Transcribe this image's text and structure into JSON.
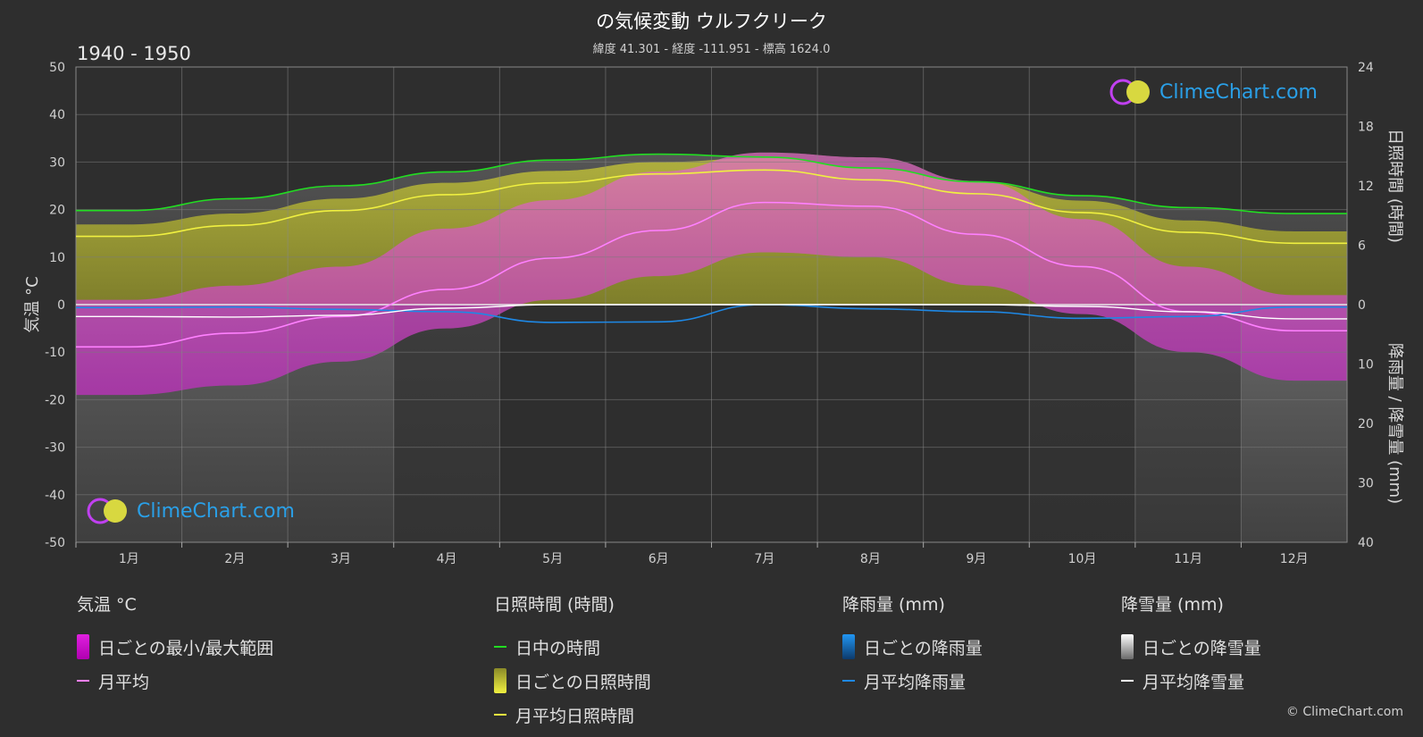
{
  "header": {
    "title": "の気候変動 ウルフクリーク",
    "subtitle": "緯度 41.301 - 経度 -111.951 - 標高 1624.0",
    "period": "1940 - 1950"
  },
  "logo": {
    "text": "ClimeChart.com"
  },
  "copyright": "© ClimeChart.com",
  "legend": {
    "temp": {
      "heading": "気温 °C",
      "range": "日ごとの最小/最大範囲",
      "avg": "月平均"
    },
    "sun": {
      "heading": "日照時間 (時間)",
      "daylight": "日中の時間",
      "daily": "日ごとの日照時間",
      "avg": "月平均日照時間"
    },
    "rain": {
      "heading": "降雨量 (mm)",
      "daily": "日ごとの降雨量",
      "avg": "月平均降雨量"
    },
    "snow": {
      "heading": "降雪量 (mm)",
      "daily": "日ごとの降雪量",
      "avg": "月平均降雪量"
    }
  },
  "colors": {
    "background": "#2e2e2e",
    "temp_range": "#e040e0",
    "temp_avg": "#ff80ff",
    "daylight": "#22dd22",
    "sunshine_band": "#b0b030",
    "sunshine_avg": "#f0f040",
    "rain": "#1e88e5",
    "snow": "#ffffff"
  },
  "chart_data": {
    "type": "line",
    "categories": [
      "1月",
      "2月",
      "3月",
      "4月",
      "5月",
      "6月",
      "7月",
      "8月",
      "9月",
      "10月",
      "11月",
      "12月"
    ],
    "axes": {
      "left": {
        "label": "気温 °C",
        "ticks": [
          "50",
          "40",
          "30",
          "20",
          "10",
          "0",
          "-10",
          "-20",
          "-30",
          "-40",
          "-50"
        ],
        "range": [
          -50,
          50
        ]
      },
      "right_top": {
        "label": "日照時間 (時間)",
        "ticks": [
          "24",
          "18",
          "12",
          "6",
          "0"
        ],
        "range": [
          0,
          24
        ]
      },
      "right_bottom": {
        "label": "降雨量 / 降雪量 (mm)",
        "ticks": [
          "0",
          "10",
          "20",
          "30",
          "40"
        ],
        "range": [
          0,
          40
        ]
      }
    },
    "grid": true,
    "series": [
      {
        "name": "日中の時間",
        "unit": "hours",
        "values": [
          9.5,
          10.7,
          12.0,
          13.4,
          14.6,
          15.2,
          14.9,
          13.8,
          12.4,
          11.0,
          9.8,
          9.2
        ]
      },
      {
        "name": "月平均日照時間",
        "unit": "hours",
        "values": [
          6.9,
          8.0,
          9.5,
          11.1,
          12.3,
          13.2,
          13.6,
          12.6,
          11.2,
          9.3,
          7.3,
          6.2
        ]
      },
      {
        "name": "月平均",
        "unit": "°C",
        "values": [
          -8.9,
          -6.0,
          -2.5,
          3.2,
          9.8,
          15.6,
          21.5,
          20.7,
          14.8,
          8.0,
          -1.5,
          -5.5
        ]
      },
      {
        "name": "月平均降雨量",
        "unit": "mm",
        "values": [
          0.5,
          0.4,
          0.8,
          1.2,
          3.0,
          2.9,
          0.0,
          0.7,
          1.2,
          2.3,
          2.0,
          0.4
        ]
      },
      {
        "name": "月平均降雪量",
        "unit": "mm",
        "values": [
          2.0,
          2.1,
          1.8,
          0.6,
          0.0,
          0.0,
          0.0,
          0.0,
          0.0,
          0.3,
          1.2,
          2.4
        ]
      }
    ],
    "daily_temperature_range": {
      "min": [
        -19,
        -17,
        -12,
        -5,
        1,
        6,
        11,
        10,
        4,
        -2,
        -10,
        -16
      ],
      "max": [
        1,
        4,
        8,
        16,
        22,
        28,
        32,
        31,
        26,
        18,
        8,
        2
      ]
    }
  }
}
